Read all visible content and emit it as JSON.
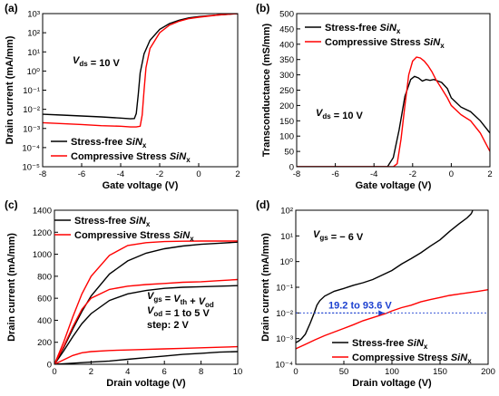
{
  "colors": {
    "stress_free": "#000000",
    "compressive": "#ff0000",
    "annotation": "#1a3fd0"
  },
  "chart_data": [
    {
      "panel": "(a)",
      "type": "line",
      "xlabel": "Gate voltage (V)",
      "ylabel": "Drain current (mA/mm)",
      "xlim": [
        -8,
        2
      ],
      "ylim": [
        1e-05,
        1000
      ],
      "yscale": "log",
      "xticks": [
        -8,
        -6,
        -4,
        -2,
        0,
        2
      ],
      "xtick_labels": [
        "-8",
        "-6",
        "-4",
        "-2",
        "0",
        "2"
      ],
      "yticks": [
        1e-05,
        0.0001,
        0.001,
        0.01,
        0.1,
        1,
        10,
        100,
        1000
      ],
      "ytick_labels": [
        "10⁻⁵",
        "10⁻⁴",
        "10⁻³",
        "10⁻²",
        "10⁻¹",
        "10⁰",
        "10¹",
        "10²",
        "10³"
      ],
      "annotation": "V_ds = 10 V",
      "legend_placement": "bottom-left",
      "series": [
        {
          "name": "Stress-free SiN_x",
          "color": "#000000",
          "x": [
            -8,
            -7,
            -6,
            -5,
            -4,
            -3.5,
            -3.3,
            -3.2,
            -3.1,
            -3.0,
            -2.8,
            -2.5,
            -2.0,
            -1.5,
            -1.0,
            -0.5,
            0,
            1,
            2
          ],
          "y": [
            0.0055,
            0.005,
            0.0045,
            0.004,
            0.0035,
            0.0032,
            0.0033,
            0.006,
            0.06,
            0.8,
            8,
            40,
            150,
            300,
            450,
            600,
            700,
            850,
            1000
          ]
        },
        {
          "name": "Compressive Stress SiN_x",
          "color": "#ff0000",
          "x": [
            -8,
            -7,
            -6,
            -5,
            -4,
            -3.5,
            -3.2,
            -3.0,
            -2.9,
            -2.8,
            -2.7,
            -2.5,
            -2.0,
            -1.5,
            -1.0,
            -0.5,
            0,
            1,
            2
          ],
          "y": [
            0.002,
            0.0018,
            0.0016,
            0.0014,
            0.0013,
            0.0012,
            0.0012,
            0.0013,
            0.005,
            0.1,
            1.5,
            15,
            100,
            250,
            400,
            550,
            650,
            850,
            1000
          ]
        }
      ]
    },
    {
      "panel": "(b)",
      "type": "line",
      "xlabel": "Gate voltage (V)",
      "ylabel": "Transconductance (mS/mm)",
      "xlim": [
        -8,
        2
      ],
      "ylim": [
        0,
        500
      ],
      "xticks": [
        -8,
        -6,
        -4,
        -2,
        0,
        2
      ],
      "xtick_labels": [
        "-8",
        "-6",
        "-4",
        "-2",
        "0",
        "2"
      ],
      "yticks": [
        0,
        50,
        100,
        150,
        200,
        250,
        300,
        350,
        400,
        450,
        500
      ],
      "ytick_labels": [
        "0",
        "50",
        "100",
        "150",
        "200",
        "250",
        "300",
        "350",
        "400",
        "450",
        "500"
      ],
      "annotation": "V_ds = 10 V",
      "legend_placement": "top-right",
      "series": [
        {
          "name": "Stress-free SiN_x",
          "color": "#000000",
          "x": [
            -8,
            -4,
            -3.3,
            -3.0,
            -2.7,
            -2.4,
            -2.1,
            -1.9,
            -1.7,
            -1.5,
            -1.3,
            -1.1,
            -0.9,
            -0.7,
            -0.5,
            -0.2,
            0,
            0.5,
            1.0,
            1.5,
            2.0
          ],
          "y": [
            0,
            0,
            0,
            30,
            120,
            230,
            285,
            295,
            290,
            280,
            285,
            282,
            285,
            280,
            275,
            255,
            225,
            195,
            180,
            150,
            110
          ]
        },
        {
          "name": "Compressive Stress SiN_x",
          "color": "#ff0000",
          "x": [
            -8,
            -4,
            -3.0,
            -2.8,
            -2.6,
            -2.4,
            -2.2,
            -2.0,
            -1.8,
            -1.6,
            -1.4,
            -1.2,
            -1.0,
            -0.8,
            -0.5,
            -0.2,
            0,
            0.5,
            1.0,
            1.5,
            2.0
          ],
          "y": [
            0,
            0,
            0,
            10,
            90,
            200,
            300,
            345,
            358,
            355,
            345,
            330,
            310,
            285,
            255,
            225,
            200,
            170,
            150,
            110,
            50
          ]
        }
      ]
    },
    {
      "panel": "(c)",
      "type": "line",
      "xlabel": "Drain voltage (V)",
      "ylabel": "Drain current (mA/mm)",
      "xlim": [
        0,
        10
      ],
      "ylim": [
        0,
        1400
      ],
      "xticks": [
        0,
        2,
        4,
        6,
        8,
        10
      ],
      "xtick_labels": [
        "0",
        "2",
        "4",
        "6",
        "8",
        "10"
      ],
      "yticks": [
        0,
        200,
        400,
        600,
        800,
        1000,
        1200,
        1400
      ],
      "ytick_labels": [
        "0",
        "200",
        "400",
        "600",
        "800",
        "1000",
        "1200",
        "1400"
      ],
      "annotation_lines": [
        "V_gs = V_th + V_od",
        "V_od = 1 to 5 V",
        "step: 2 V"
      ],
      "legend_placement": "top-left",
      "series": [
        {
          "name": "Stress-free SiN_x",
          "color": "#000000",
          "x": [
            0,
            0.5,
            1,
            1.5,
            2,
            3,
            4,
            5,
            6,
            7,
            8,
            9,
            10
          ],
          "y": [
            0,
            150,
            320,
            480,
            620,
            820,
            940,
            1010,
            1050,
            1075,
            1090,
            1100,
            1110
          ]
        },
        {
          "name": "Compressive Stress SiN_x",
          "color": "#ff0000",
          "x": [
            0,
            0.5,
            1,
            1.5,
            2,
            3,
            4,
            5,
            6,
            7,
            8,
            9,
            10
          ],
          "y": [
            0,
            200,
            430,
            640,
            800,
            990,
            1080,
            1105,
            1115,
            1118,
            1120,
            1120,
            1120
          ]
        },
        {
          "name": "",
          "color": "#000000",
          "x": [
            0,
            0.5,
            1,
            1.5,
            2,
            3,
            4,
            5,
            6,
            7,
            8,
            9,
            10
          ],
          "y": [
            0,
            120,
            250,
            370,
            460,
            580,
            640,
            670,
            690,
            700,
            705,
            710,
            715
          ]
        },
        {
          "name": "",
          "color": "#ff0000",
          "x": [
            0,
            0.5,
            1,
            1.5,
            2,
            3,
            4,
            5,
            6,
            7,
            8,
            9,
            10
          ],
          "y": [
            0,
            160,
            340,
            500,
            600,
            680,
            710,
            725,
            735,
            745,
            750,
            760,
            770
          ]
        },
        {
          "name": "",
          "color": "#000000",
          "x": [
            0,
            0.5,
            1,
            1.5,
            2,
            3,
            4,
            5,
            6,
            7,
            8,
            9,
            10
          ],
          "y": [
            0,
            5,
            10,
            15,
            20,
            30,
            45,
            60,
            75,
            90,
            100,
            110,
            115
          ]
        },
        {
          "name": "",
          "color": "#ff0000",
          "x": [
            0,
            0.5,
            1,
            1.5,
            2,
            3,
            4,
            5,
            6,
            7,
            8,
            9,
            10
          ],
          "y": [
            0,
            40,
            80,
            105,
            115,
            125,
            130,
            135,
            140,
            145,
            150,
            155,
            160
          ]
        }
      ]
    },
    {
      "panel": "(d)",
      "type": "line",
      "xlabel": "Drain voltage (V)",
      "ylabel": "Drain current (mA/mm)",
      "xlim": [
        0,
        200
      ],
      "ylim": [
        0.0001,
        100
      ],
      "yscale": "log",
      "xticks": [
        0,
        50,
        100,
        150,
        200
      ],
      "xtick_labels": [
        "0",
        "50",
        "100",
        "150",
        "200"
      ],
      "yticks": [
        0.0001,
        0.001,
        0.01,
        0.1,
        1,
        10,
        100
      ],
      "ytick_labels": [
        "10⁻⁴",
        "10⁻³",
        "10⁻²",
        "10⁻¹",
        "10⁰",
        "10¹",
        "10²"
      ],
      "annotation": "V_gs = − 6 V",
      "reference_line": {
        "y": 0.01,
        "label": "19.2 to 93.6 V",
        "from_x": 19.2,
        "to_x": 93.6
      },
      "legend_placement": "bottom-right",
      "series": [
        {
          "name": "Stress-free SiN_x",
          "color": "#000000",
          "x": [
            0,
            3,
            6,
            10,
            15,
            19,
            22,
            25,
            30,
            40,
            50,
            60,
            70,
            80,
            90,
            100,
            110,
            120,
            130,
            140,
            150,
            160,
            170,
            178,
            182,
            183,
            184
          ],
          "y": [
            0.0007,
            0.0008,
            0.001,
            0.0015,
            0.004,
            0.0095,
            0.02,
            0.03,
            0.045,
            0.07,
            0.09,
            0.12,
            0.15,
            0.2,
            0.3,
            0.45,
            0.8,
            1.3,
            2.2,
            4,
            7,
            15,
            30,
            50,
            70,
            80,
            100
          ]
        },
        {
          "name": "Compressive Stress SiN_x",
          "color": "#ff0000",
          "x": [
            0,
            10,
            20,
            30,
            40,
            50,
            60,
            70,
            80,
            93.6,
            100,
            110,
            120,
            130,
            140,
            150,
            160,
            170,
            180,
            190,
            200
          ],
          "y": [
            0.0004,
            0.0006,
            0.0009,
            0.0013,
            0.0018,
            0.0025,
            0.0035,
            0.005,
            0.0065,
            0.0095,
            0.012,
            0.016,
            0.02,
            0.027,
            0.033,
            0.04,
            0.048,
            0.055,
            0.062,
            0.07,
            0.08
          ]
        }
      ]
    }
  ]
}
